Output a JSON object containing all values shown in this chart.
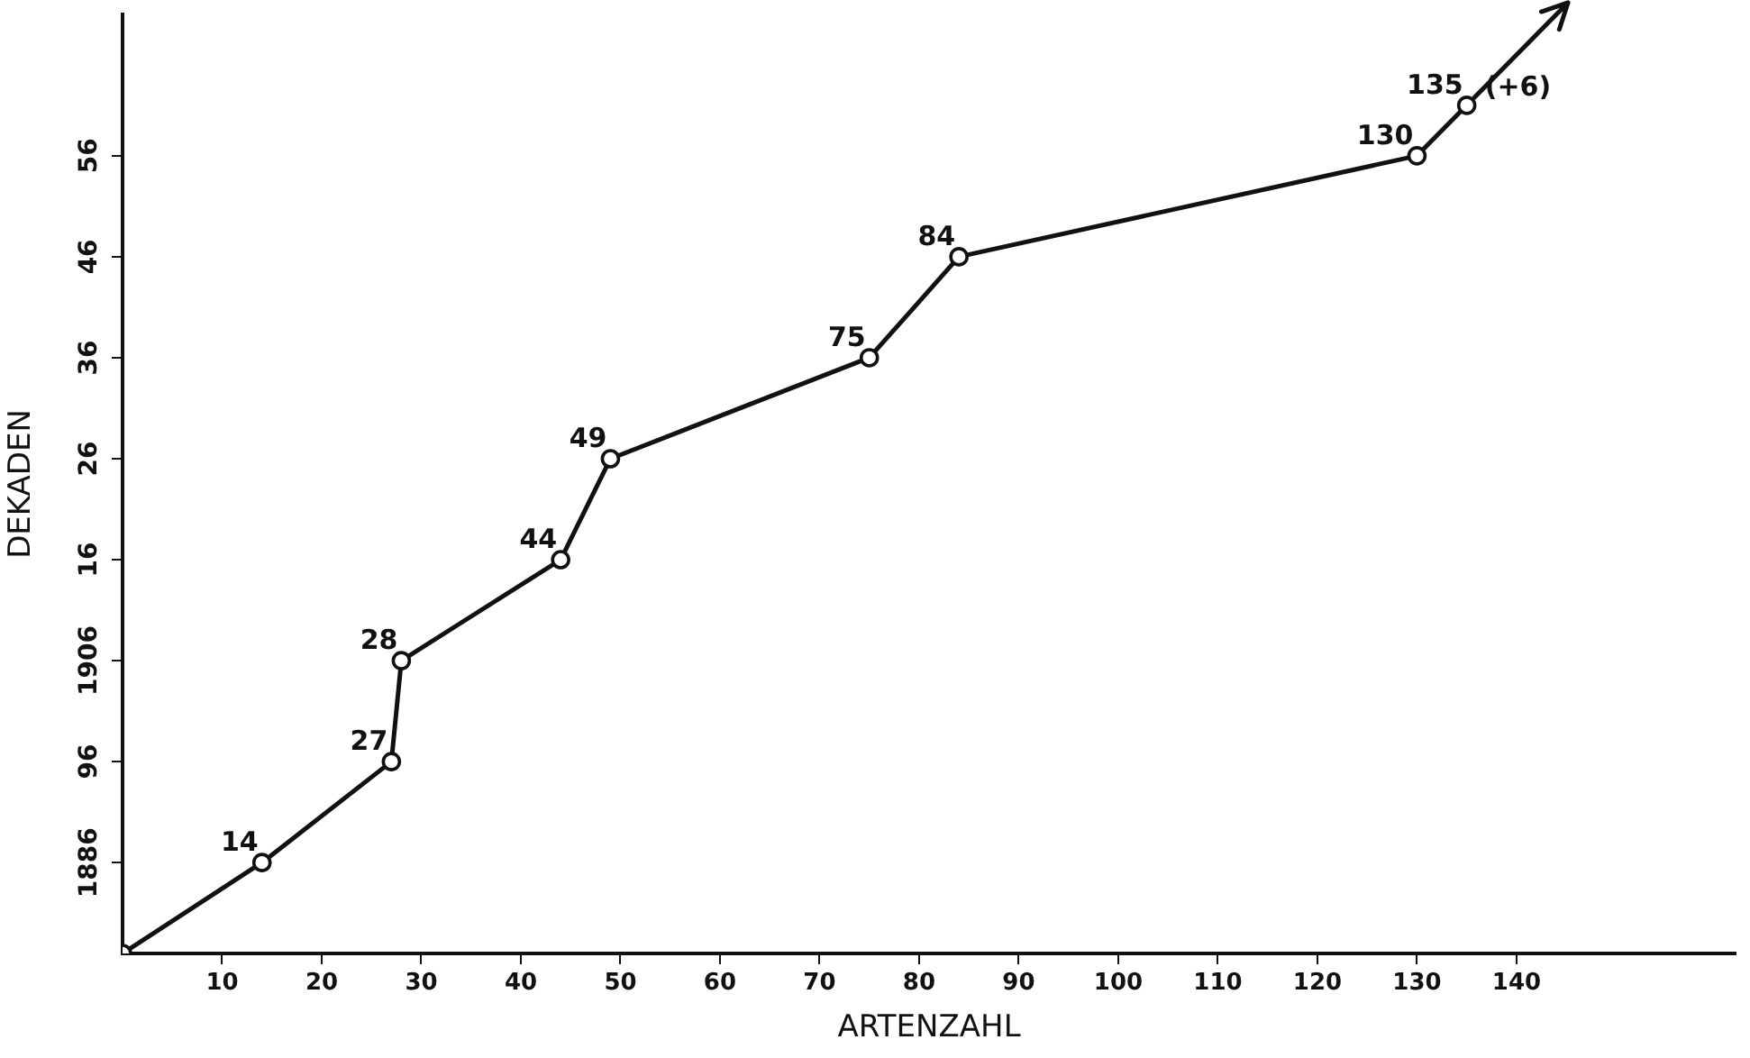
{
  "chart_data": {
    "type": "line",
    "xlabel": "ARTENZAHL",
    "ylabel": "DEKADEN",
    "series": [
      {
        "color": "#111111",
        "x": [
          0,
          14,
          27,
          28,
          44,
          49,
          75,
          84,
          130,
          135
        ],
        "values": [
          1877,
          1886,
          1896,
          1906,
          1916,
          1926,
          1936,
          1946,
          1956,
          1961
        ]
      }
    ],
    "annotations": [
      {
        "text": "14",
        "x": 14,
        "y": 1886
      },
      {
        "text": "27",
        "x": 27,
        "y": 1896
      },
      {
        "text": "28",
        "x": 28,
        "y": 1906
      },
      {
        "text": "44",
        "x": 44,
        "y": 1916
      },
      {
        "text": "49",
        "x": 49,
        "y": 1926
      },
      {
        "text": "75",
        "x": 75,
        "y": 1936
      },
      {
        "text": "84",
        "x": 84,
        "y": 1946
      },
      {
        "text": "130",
        "x": 130,
        "y": 1956
      },
      {
        "text": "135",
        "x": 135,
        "y": 1961
      },
      {
        "text": "(+6)",
        "x": 135,
        "y": 1961
      }
    ],
    "xlim": [
      0,
      162
    ],
    "xticks": [
      10,
      20,
      30,
      40,
      50,
      60,
      70,
      80,
      90,
      100,
      110,
      120,
      130,
      140
    ],
    "ylim": [
      1877,
      1970
    ],
    "yticks": [
      {
        "value": 1886,
        "label": "1886"
      },
      {
        "value": 1896,
        "label": "96"
      },
      {
        "value": 1906,
        "label": "1906"
      },
      {
        "value": 1916,
        "label": "16"
      },
      {
        "value": 1926,
        "label": "26"
      },
      {
        "value": 1936,
        "label": "36"
      },
      {
        "value": 1946,
        "label": "46"
      },
      {
        "value": 1956,
        "label": "56"
      }
    ],
    "grid": false,
    "legend": false,
    "marker": "circle",
    "line_style": "solid"
  }
}
